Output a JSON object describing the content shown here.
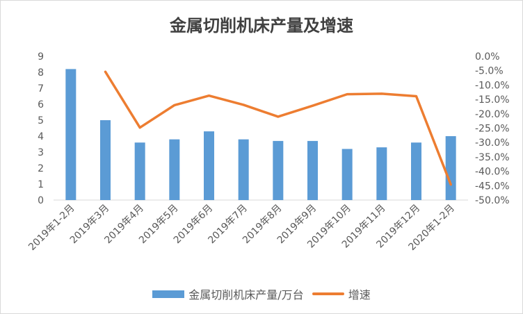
{
  "chart_data": {
    "type": "bar",
    "title": "金属切削机床产量及增速",
    "categories": [
      "2019年1-2月",
      "2019年3月",
      "2019年4月",
      "2019年5月",
      "2019年6月",
      "2019年7月",
      "2019年8月",
      "2019年9月",
      "2019年10月",
      "2019年11月",
      "2019年12月",
      "2020年1-2月"
    ],
    "series": [
      {
        "name": "金属切削机床产量/万台",
        "type": "bar",
        "axis": "left",
        "color": "#5b9bd5",
        "values": [
          8.2,
          5.0,
          3.6,
          3.8,
          4.3,
          3.8,
          3.7,
          3.7,
          3.2,
          3.3,
          3.6,
          4.0
        ]
      },
      {
        "name": "增速",
        "type": "line",
        "axis": "right",
        "color": "#ed7d31",
        "values": [
          null,
          -5.4,
          -24.8,
          -17.0,
          -13.7,
          -16.9,
          -21.0,
          -17.2,
          -13.2,
          -13.0,
          -13.9,
          -44.6
        ]
      }
    ],
    "y_left": {
      "min": 0,
      "max": 9,
      "step": 1,
      "ticks": [
        "0",
        "1",
        "2",
        "3",
        "4",
        "5",
        "6",
        "7",
        "8",
        "9"
      ]
    },
    "y_right": {
      "min": -50,
      "max": 0,
      "step": 5,
      "ticks": [
        "0.0%",
        "-5.0%",
        "-10.0%",
        "-15.0%",
        "-20.0%",
        "-25.0%",
        "-30.0%",
        "-35.0%",
        "-40.0%",
        "-45.0%",
        "-50.0%"
      ]
    },
    "grid": false,
    "legend_position": "bottom"
  }
}
